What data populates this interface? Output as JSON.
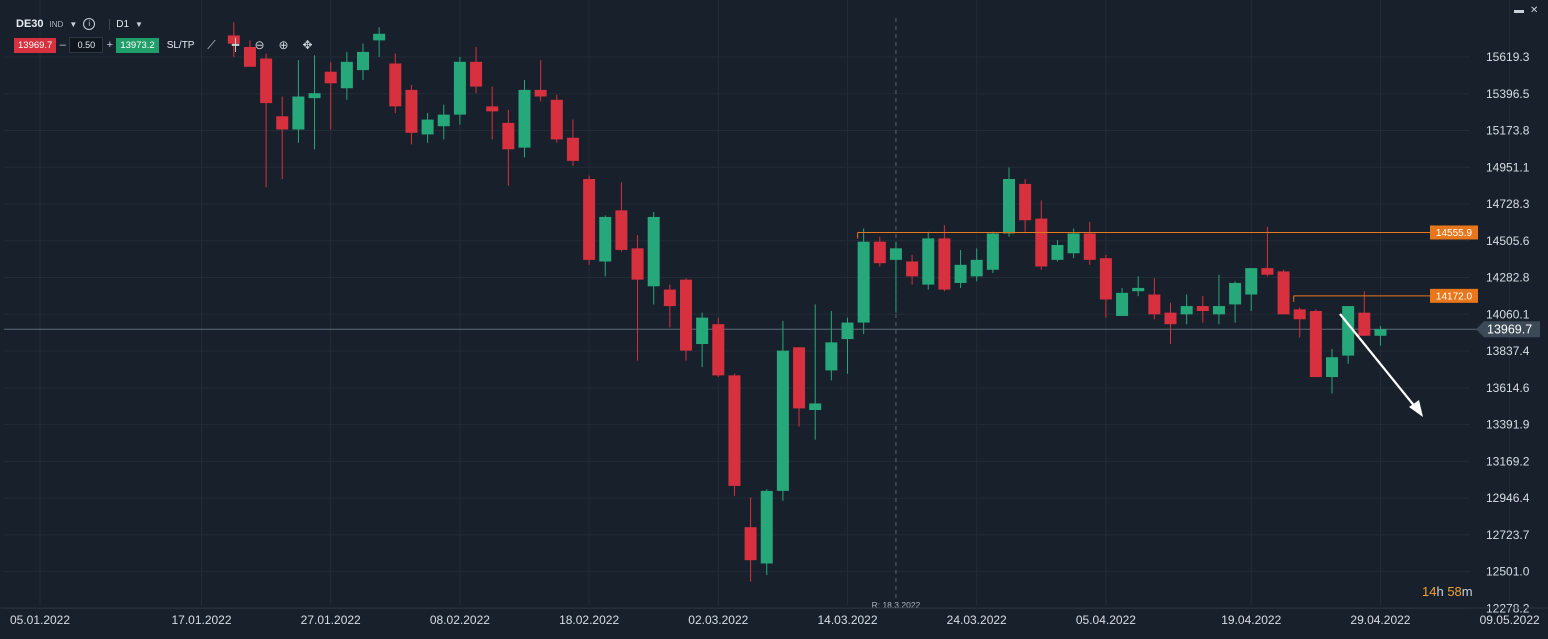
{
  "header": {
    "symbol": "DE30",
    "instrument_type": "IND",
    "timeframe": "D1",
    "sell_price": "13969.7",
    "lot_size": "0.50",
    "buy_price": "13973.2",
    "sltp_label": "SL/TP",
    "minus": "–",
    "plus": "+"
  },
  "timer": {
    "hours": "14",
    "h": "h",
    "minutes": "58",
    "m": "m"
  },
  "colors": {
    "bull": "#26a87a",
    "bear": "#d7303e",
    "background": "#18212b",
    "level": "#e8761a",
    "grid": "#222c36"
  },
  "chart_data": {
    "type": "candlestick",
    "instrument": "DE30",
    "timeframe": "D1",
    "ylim": [
      12200,
      15820
    ],
    "y_ticks": [
      "15619.3",
      "15396.5",
      "15173.8",
      "14951.1",
      "14728.3",
      "14505.6",
      "14282.8",
      "14060.1",
      "13837.4",
      "13614.6",
      "13391.9",
      "13169.2",
      "12946.4",
      "12723.7",
      "12501.0",
      "12278.2"
    ],
    "x_labels": [
      {
        "label": "05.01.2022",
        "index": 0
      },
      {
        "label": "17.01.2022",
        "index": 10
      },
      {
        "label": "27.01.2022",
        "index": 18
      },
      {
        "label": "08.02.2022",
        "index": 26
      },
      {
        "label": "18.02.2022",
        "index": 34
      },
      {
        "label": "02.03.2022",
        "index": 42
      },
      {
        "label": "14.03.2022",
        "index": 50
      },
      {
        "label": "24.03.2022",
        "index": 58
      },
      {
        "label": "05.04.2022",
        "index": 66
      },
      {
        "label": "19.04.2022",
        "index": 75
      },
      {
        "label": "29.04.2022",
        "index": 83
      },
      {
        "label": "09.05.2022",
        "index": 91
      }
    ],
    "vertical_marker": {
      "label": "R: 18.3.2022",
      "index": 53
    },
    "current_price": "13969.7",
    "levels": [
      {
        "label": "14555.9",
        "value": 14555.9,
        "from_index": 51
      },
      {
        "label": "14172.0",
        "value": 14172.0,
        "from_index": 78
      }
    ],
    "candles": [
      {
        "i": 12,
        "o": 15750,
        "h": 15830,
        "l": 15620,
        "c": 15700
      },
      {
        "i": 13,
        "o": 15680,
        "h": 15720,
        "l": 15580,
        "c": 15560
      },
      {
        "i": 14,
        "o": 15610,
        "h": 15640,
        "l": 14830,
        "c": 15340
      },
      {
        "i": 15,
        "o": 15260,
        "h": 15380,
        "l": 14880,
        "c": 15180
      },
      {
        "i": 16,
        "o": 15180,
        "h": 15600,
        "l": 15100,
        "c": 15380
      },
      {
        "i": 17,
        "o": 15370,
        "h": 15630,
        "l": 15060,
        "c": 15400
      },
      {
        "i": 18,
        "o": 15530,
        "h": 15590,
        "l": 15180,
        "c": 15460
      },
      {
        "i": 19,
        "o": 15430,
        "h": 15650,
        "l": 15360,
        "c": 15590
      },
      {
        "i": 20,
        "o": 15540,
        "h": 15700,
        "l": 15480,
        "c": 15650
      },
      {
        "i": 21,
        "o": 15720,
        "h": 15800,
        "l": 15620,
        "c": 15760
      },
      {
        "i": 22,
        "o": 15580,
        "h": 15640,
        "l": 15280,
        "c": 15320
      },
      {
        "i": 23,
        "o": 15420,
        "h": 15450,
        "l": 15090,
        "c": 15160
      },
      {
        "i": 24,
        "o": 15150,
        "h": 15280,
        "l": 15100,
        "c": 15240
      },
      {
        "i": 25,
        "o": 15200,
        "h": 15330,
        "l": 15120,
        "c": 15270
      },
      {
        "i": 26,
        "o": 15270,
        "h": 15620,
        "l": 15210,
        "c": 15590
      },
      {
        "i": 27,
        "o": 15590,
        "h": 15680,
        "l": 15400,
        "c": 15440
      },
      {
        "i": 28,
        "o": 15320,
        "h": 15440,
        "l": 15120,
        "c": 15290
      },
      {
        "i": 29,
        "o": 15220,
        "h": 15300,
        "l": 14840,
        "c": 15060
      },
      {
        "i": 30,
        "o": 15070,
        "h": 15480,
        "l": 15010,
        "c": 15420
      },
      {
        "i": 31,
        "o": 15420,
        "h": 15600,
        "l": 15350,
        "c": 15380
      },
      {
        "i": 32,
        "o": 15360,
        "h": 15390,
        "l": 15100,
        "c": 15120
      },
      {
        "i": 33,
        "o": 15130,
        "h": 15240,
        "l": 14960,
        "c": 14990
      },
      {
        "i": 34,
        "o": 14880,
        "h": 14900,
        "l": 14360,
        "c": 14390
      },
      {
        "i": 35,
        "o": 14380,
        "h": 14660,
        "l": 14290,
        "c": 14650
      },
      {
        "i": 36,
        "o": 14690,
        "h": 14860,
        "l": 14440,
        "c": 14450
      },
      {
        "i": 37,
        "o": 14460,
        "h": 14540,
        "l": 13780,
        "c": 14270
      },
      {
        "i": 38,
        "o": 14230,
        "h": 14680,
        "l": 14120,
        "c": 14650
      },
      {
        "i": 39,
        "o": 14210,
        "h": 14240,
        "l": 13980,
        "c": 14110
      },
      {
        "i": 40,
        "o": 14270,
        "h": 14280,
        "l": 13780,
        "c": 13840
      },
      {
        "i": 41,
        "o": 13880,
        "h": 14070,
        "l": 13740,
        "c": 14040
      },
      {
        "i": 42,
        "o": 14000,
        "h": 14040,
        "l": 13680,
        "c": 13690
      },
      {
        "i": 43,
        "o": 13690,
        "h": 13700,
        "l": 12960,
        "c": 13020
      },
      {
        "i": 44,
        "o": 12770,
        "h": 12950,
        "l": 12440,
        "c": 12570
      },
      {
        "i": 45,
        "o": 12550,
        "h": 13000,
        "l": 12480,
        "c": 12990
      },
      {
        "i": 46,
        "o": 12990,
        "h": 14020,
        "l": 12930,
        "c": 13840
      },
      {
        "i": 47,
        "o": 13860,
        "h": 13860,
        "l": 13380,
        "c": 13490
      },
      {
        "i": 48,
        "o": 13480,
        "h": 14120,
        "l": 13300,
        "c": 13520
      },
      {
        "i": 49,
        "o": 13720,
        "h": 14080,
        "l": 13660,
        "c": 13890
      },
      {
        "i": 50,
        "o": 13910,
        "h": 14040,
        "l": 13700,
        "c": 14010
      },
      {
        "i": 51,
        "o": 14010,
        "h": 14580,
        "l": 13940,
        "c": 14500
      },
      {
        "i": 52,
        "o": 14500,
        "h": 14530,
        "l": 14350,
        "c": 14370
      },
      {
        "i": 53,
        "o": 14390,
        "h": 14500,
        "l": 14070,
        "c": 14460
      },
      {
        "i": 54,
        "o": 14380,
        "h": 14420,
        "l": 14240,
        "c": 14290
      },
      {
        "i": 55,
        "o": 14240,
        "h": 14560,
        "l": 14210,
        "c": 14520
      },
      {
        "i": 56,
        "o": 14520,
        "h": 14600,
        "l": 14200,
        "c": 14210
      },
      {
        "i": 57,
        "o": 14250,
        "h": 14450,
        "l": 14220,
        "c": 14360
      },
      {
        "i": 58,
        "o": 14290,
        "h": 14460,
        "l": 14260,
        "c": 14390
      },
      {
        "i": 59,
        "o": 14330,
        "h": 14560,
        "l": 14310,
        "c": 14550
      },
      {
        "i": 60,
        "o": 14550,
        "h": 14950,
        "l": 14530,
        "c": 14880
      },
      {
        "i": 61,
        "o": 14850,
        "h": 14880,
        "l": 14560,
        "c": 14630
      },
      {
        "i": 62,
        "o": 14640,
        "h": 14750,
        "l": 14330,
        "c": 14350
      },
      {
        "i": 63,
        "o": 14390,
        "h": 14510,
        "l": 14380,
        "c": 14480
      },
      {
        "i": 64,
        "o": 14430,
        "h": 14580,
        "l": 14400,
        "c": 14550
      },
      {
        "i": 65,
        "o": 14550,
        "h": 14620,
        "l": 14360,
        "c": 14390
      },
      {
        "i": 66,
        "o": 14400,
        "h": 14420,
        "l": 14040,
        "c": 14150
      },
      {
        "i": 67,
        "o": 14050,
        "h": 14220,
        "l": 14050,
        "c": 14190
      },
      {
        "i": 68,
        "o": 14200,
        "h": 14290,
        "l": 14170,
        "c": 14220
      },
      {
        "i": 69,
        "o": 14180,
        "h": 14280,
        "l": 14030,
        "c": 14060
      },
      {
        "i": 70,
        "o": 14070,
        "h": 14130,
        "l": 13880,
        "c": 14000
      },
      {
        "i": 71,
        "o": 14060,
        "h": 14180,
        "l": 14000,
        "c": 14110
      },
      {
        "i": 72,
        "o": 14110,
        "h": 14170,
        "l": 14010,
        "c": 14080
      },
      {
        "i": 73,
        "o": 14060,
        "h": 14300,
        "l": 14000,
        "c": 14110
      },
      {
        "i": 74,
        "o": 14120,
        "h": 14260,
        "l": 14010,
        "c": 14250
      },
      {
        "i": 75,
        "o": 14180,
        "h": 14340,
        "l": 14080,
        "c": 14340
      },
      {
        "i": 76,
        "o": 14340,
        "h": 14590,
        "l": 14290,
        "c": 14300
      },
      {
        "i": 77,
        "o": 14320,
        "h": 14330,
        "l": 14060,
        "c": 14060
      },
      {
        "i": 78,
        "o": 14090,
        "h": 14100,
        "l": 13920,
        "c": 14030
      },
      {
        "i": 79,
        "o": 14080,
        "h": 14090,
        "l": 13680,
        "c": 13680
      },
      {
        "i": 80,
        "o": 13680,
        "h": 13850,
        "l": 13580,
        "c": 13800
      },
      {
        "i": 81,
        "o": 13810,
        "h": 14110,
        "l": 13760,
        "c": 14110
      },
      {
        "i": 82,
        "o": 14070,
        "h": 14200,
        "l": 13930,
        "c": 13930
      },
      {
        "i": 83,
        "o": 13930,
        "h": 13990,
        "l": 13870,
        "c": 13970
      }
    ]
  }
}
